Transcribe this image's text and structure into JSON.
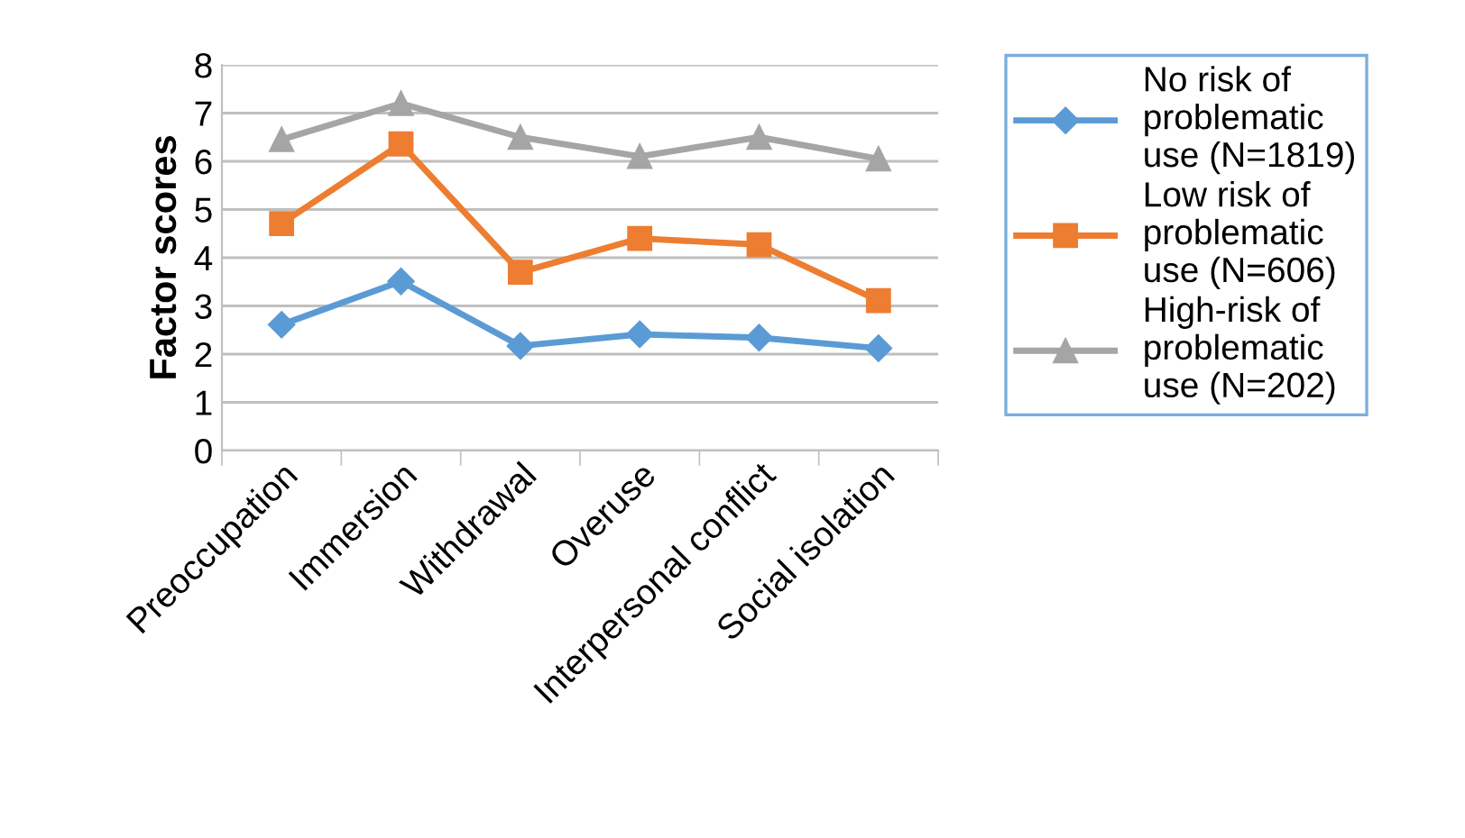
{
  "chart_data": {
    "type": "line",
    "ylabel": "Factor scores",
    "categories": [
      "Preoccupation",
      "Immersion",
      "Withdrawal",
      "Overuse",
      "Interpersonal conflict",
      "Social isolation"
    ],
    "series": [
      {
        "name": "No risk of\nproblematic\nuse (N=1819)",
        "color": "#5b9bd5",
        "marker": "diamond",
        "values": [
          2.61,
          3.51,
          2.17,
          2.41,
          2.34,
          2.12
        ]
      },
      {
        "name": "Low risk of\nproblematic\nuse (N=606)",
        "color": "#ed7d31",
        "marker": "square",
        "values": [
          4.71,
          6.36,
          3.7,
          4.4,
          4.27,
          3.11
        ]
      },
      {
        "name": "High-risk of\nproblematic\nuse (N=202)",
        "color": "#a5a5a5",
        "marker": "triangle",
        "values": [
          6.45,
          7.2,
          6.5,
          6.1,
          6.5,
          6.05
        ]
      }
    ],
    "ylim": [
      0,
      8
    ],
    "yticks": [
      0,
      1,
      2,
      3,
      4,
      5,
      6,
      7,
      8
    ],
    "grid": "y",
    "legend": "right",
    "line_style": "solid"
  }
}
